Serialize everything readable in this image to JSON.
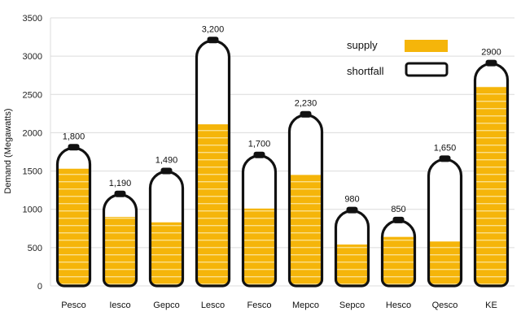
{
  "chart_data": {
    "type": "bar",
    "ylabel": "Demand (Megawatts)",
    "ylim": [
      0,
      3500
    ],
    "yticks": [
      0,
      500,
      1000,
      1500,
      2000,
      2500,
      3000,
      3500
    ],
    "grid": true,
    "legend_position": "top-right",
    "categories": [
      "Pesco",
      "Iesco",
      "Gepco",
      "Lesco",
      "Fesco",
      "Mepco",
      "Sepco",
      "Hesco",
      "Qesco",
      "KE"
    ],
    "demand": [
      1800,
      1190,
      1490,
      3200,
      1700,
      2230,
      980,
      850,
      1650,
      2900
    ],
    "demand_labels": [
      "1,800",
      "1,190",
      "1,490",
      "3,200",
      "1,700",
      "2,230",
      "980",
      "850",
      "1,650",
      "2900"
    ],
    "series": [
      {
        "name": "supply",
        "values": [
          1530,
          900,
          830,
          2110,
          1010,
          1450,
          540,
          640,
          580,
          2600
        ],
        "color": "#F5B50A"
      },
      {
        "name": "shortfall",
        "values": [
          270,
          290,
          660,
          1090,
          690,
          780,
          440,
          210,
          1070,
          300
        ],
        "color": "#FFFFFF"
      }
    ]
  }
}
